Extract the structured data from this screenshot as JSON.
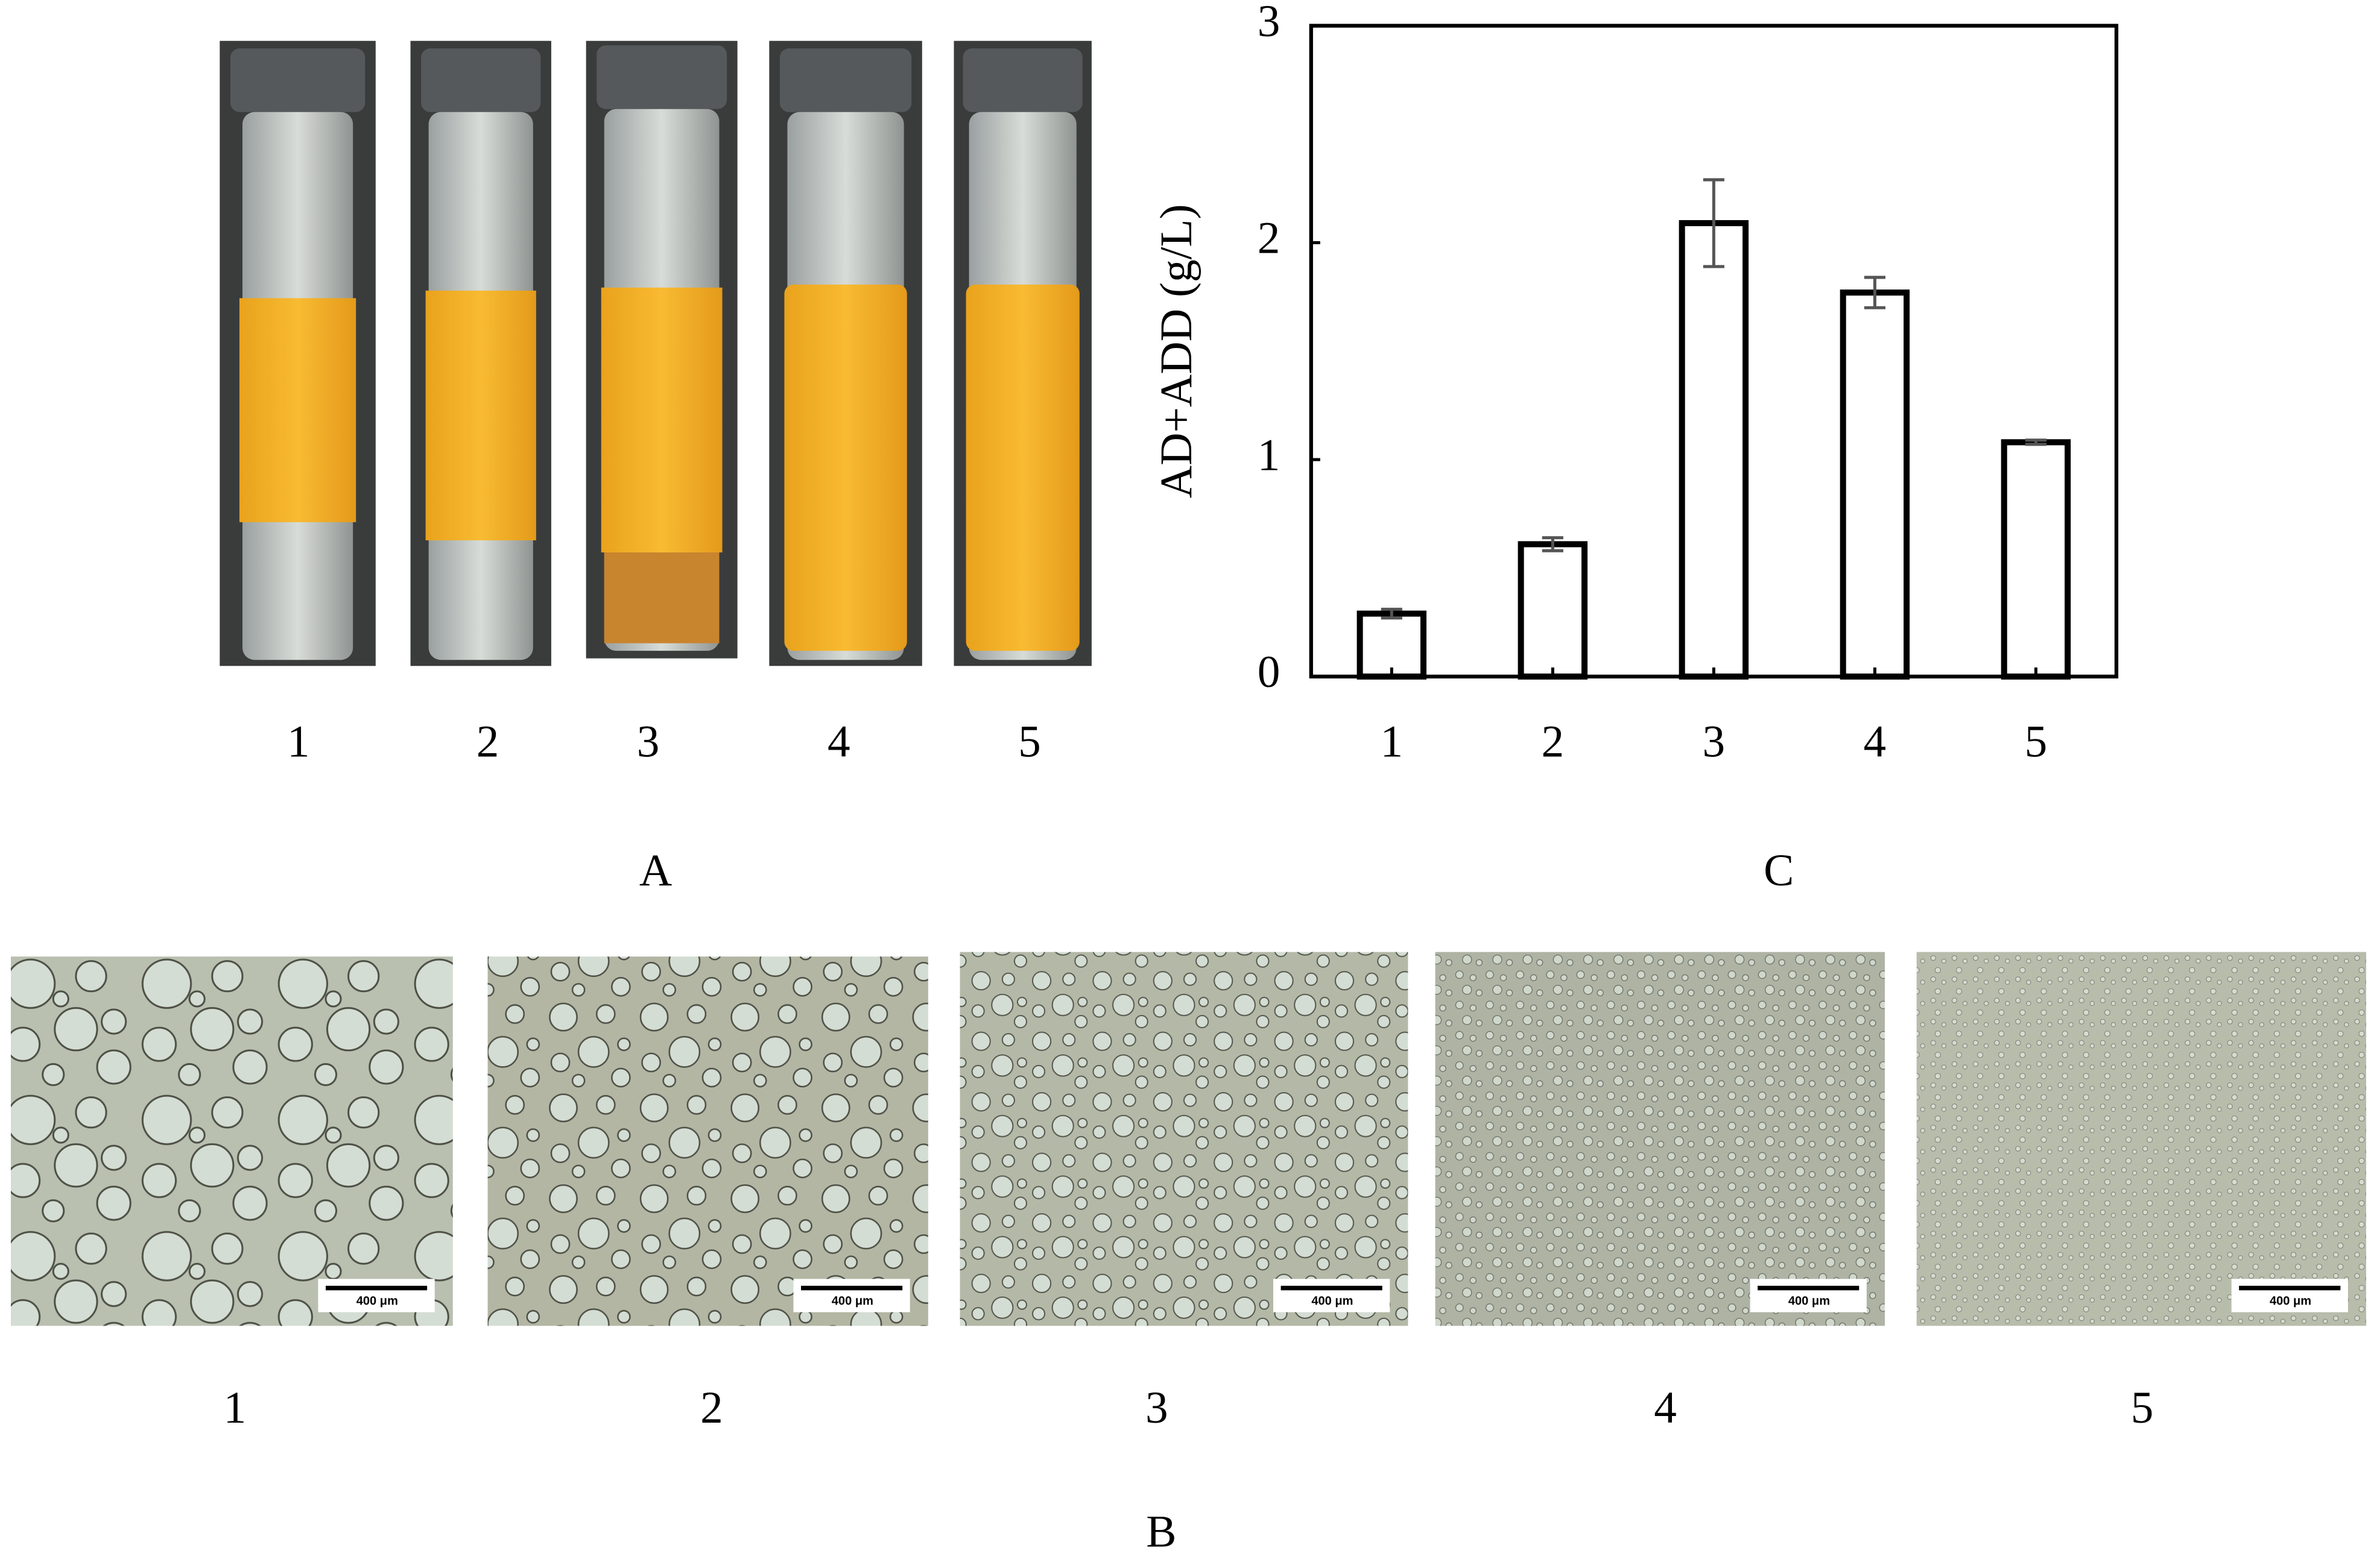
{
  "panel_a": {
    "label": "A",
    "labels": [
      "1",
      "2",
      "3",
      "4",
      "5"
    ]
  },
  "panel_b": {
    "label": "B",
    "labels": [
      "1",
      "2",
      "3",
      "4",
      "5"
    ],
    "scale_bars": [
      "400 μm",
      "400 μm",
      "400 μm",
      "400 μm",
      "400 μm"
    ]
  },
  "chart_data": {
    "type": "bar",
    "panel_label": "C",
    "y_label": "AD+ADD (g/L)",
    "categories": [
      "1",
      "2",
      "3",
      "4",
      "5"
    ],
    "values": [
      0.29,
      0.61,
      2.09,
      1.77,
      1.08
    ],
    "errors": [
      0.02,
      0.03,
      0.2,
      0.07,
      0.01
    ],
    "color": "#ffffff",
    "edge_color": "#000000",
    "error_color": "#555555",
    "ylim": [
      0,
      3
    ],
    "yticks": [
      0,
      1,
      2,
      3
    ]
  }
}
